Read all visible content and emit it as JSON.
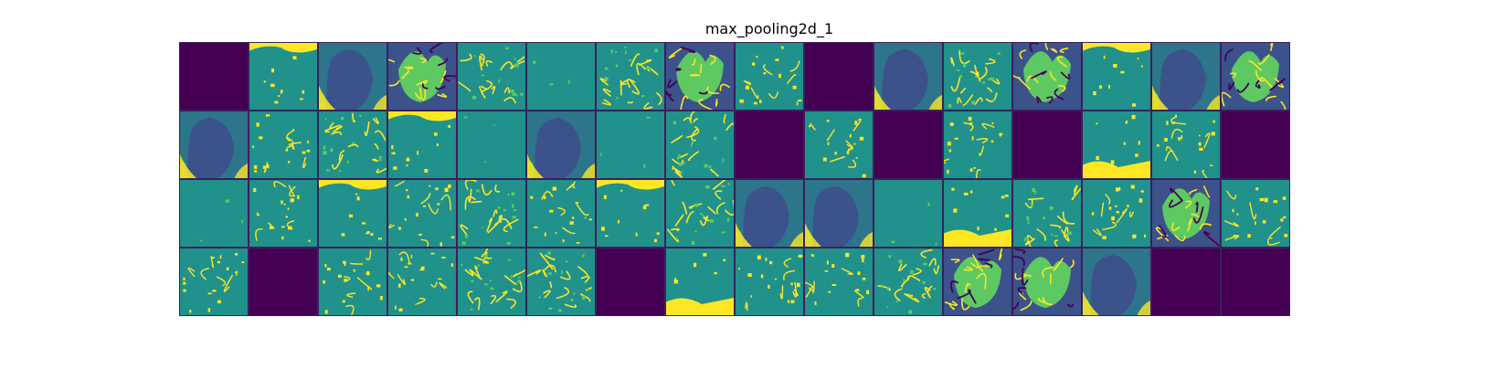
{
  "chart_data": {
    "type": "heatmap",
    "title": "max_pooling2d_1",
    "rows": 4,
    "cols": 16,
    "colormap": [
      "#440154",
      "#3b528b",
      "#21918c",
      "#5ec962",
      "#fde725"
    ],
    "background_color": "#ffffff",
    "cell_border_color": "#3b1f5c",
    "tiles": [
      [
        "dead",
        "background-highlight",
        "dark-blob",
        "fox-face",
        "edges",
        "flat",
        "edges",
        "fox-face",
        "sparse-edges",
        "dead",
        "dark-blob",
        "edges",
        "fox-face",
        "background-highlight",
        "dark-blob",
        "fox-face"
      ],
      [
        "dark-blob",
        "sparse-edges",
        "edges",
        "background-highlight",
        "flat",
        "dark-blob",
        "flat",
        "edges",
        "dead",
        "sparse-edges",
        "dead",
        "sparse-edges",
        "dead",
        "background-highlight",
        "sparse-edges",
        "dead"
      ],
      [
        "flat",
        "sparse-edges",
        "background-highlight",
        "sparse-edges",
        "edges",
        "sparse-edges",
        "background-highlight",
        "edges",
        "dark-blob",
        "dark-blob",
        "flat",
        "background-highlight",
        "edges",
        "sparse-edges",
        "fox-face",
        "sparse-edges"
      ],
      [
        "sparse-edges",
        "dead",
        "sparse-edges",
        "sparse-edges",
        "edges",
        "edges",
        "dead",
        "background-highlight",
        "sparse-edges",
        "sparse-edges",
        "edges",
        "fox-face",
        "fox-face",
        "dark-blob",
        "dead",
        "dead"
      ]
    ]
  }
}
